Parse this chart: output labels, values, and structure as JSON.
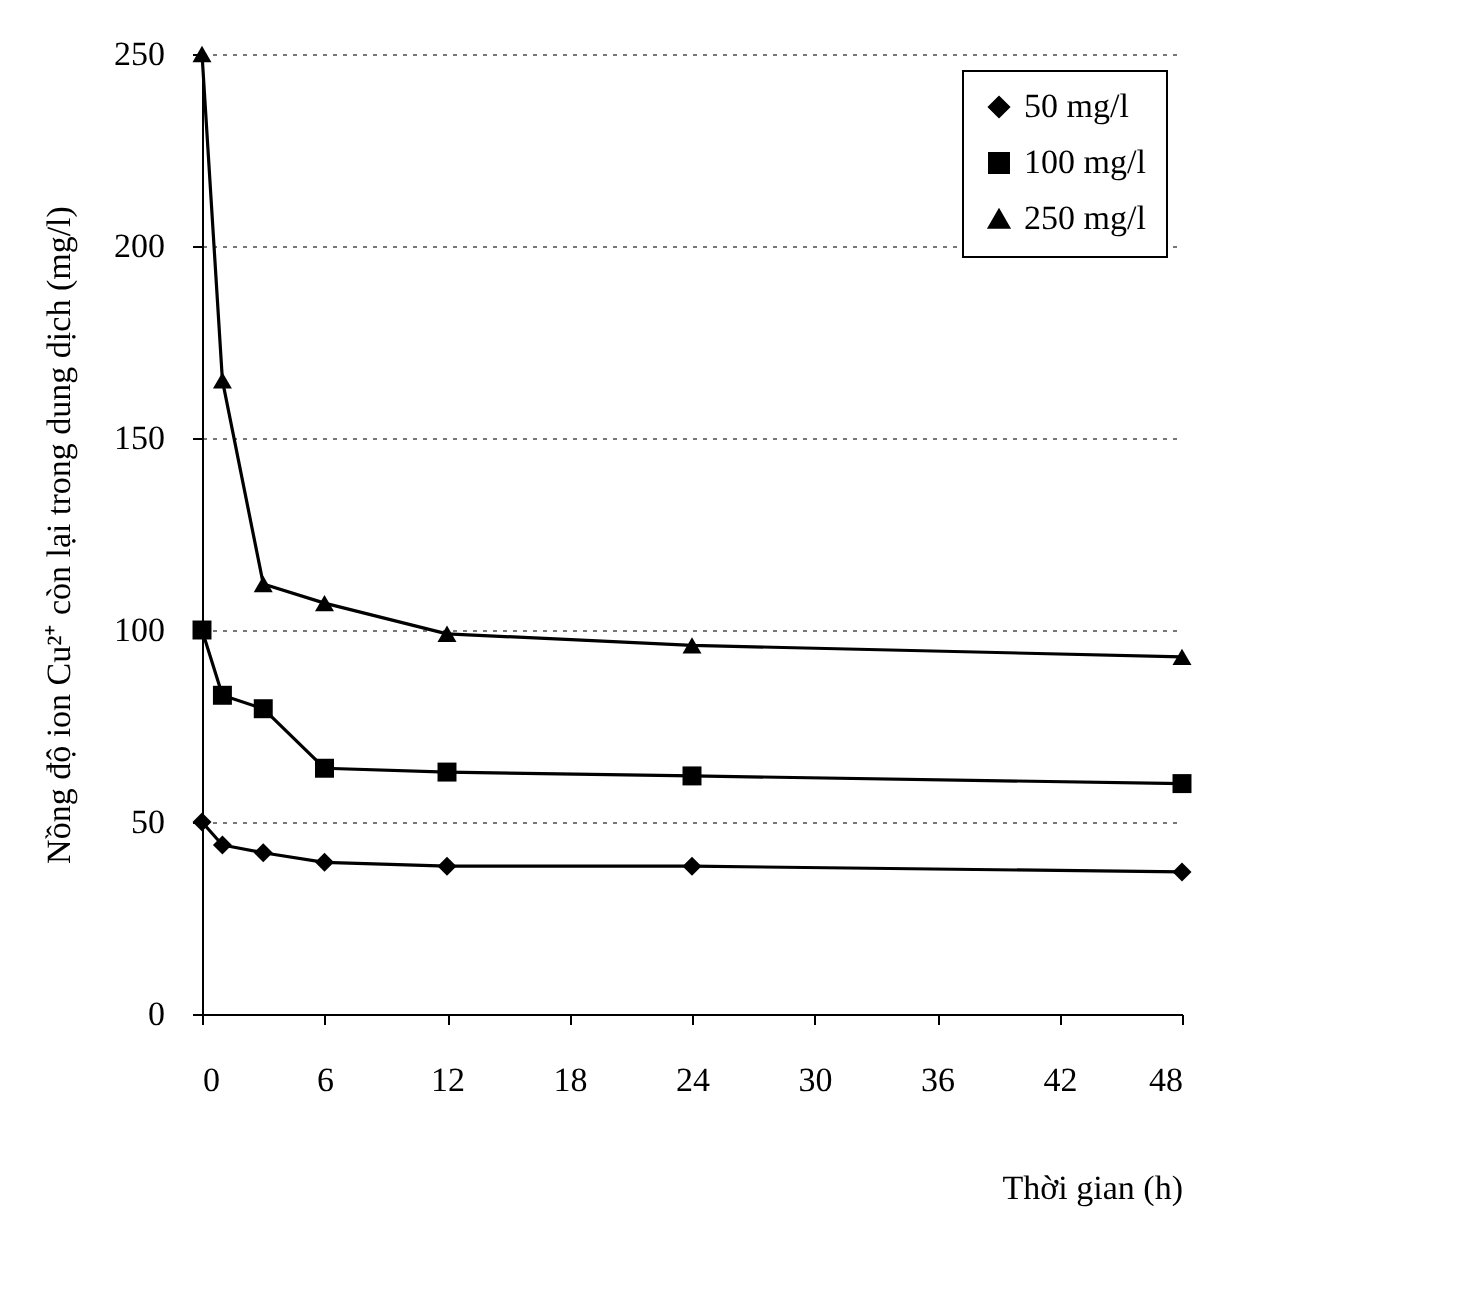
{
  "chart_data": {
    "type": "line",
    "xlabel": "Thời gian (h)",
    "ylabel": "Nồng độ ion Cu²⁺ còn lại trong dung dịch (mg/l)",
    "x": [
      0,
      1,
      3,
      6,
      12,
      24,
      48
    ],
    "series": [
      {
        "name": "50 mg/l",
        "color": "#000000",
        "marker": "diamond",
        "values": [
          50,
          44,
          42,
          39.5,
          38.5,
          38.5,
          37
        ]
      },
      {
        "name": "100 mg/l",
        "color": "#000000",
        "marker": "square",
        "values": [
          100,
          83,
          79.5,
          64,
          63,
          62,
          60
        ]
      },
      {
        "name": "250 mg/l",
        "color": "#000000",
        "marker": "triangle",
        "values": [
          250,
          165,
          112,
          107,
          99,
          96,
          93
        ]
      }
    ],
    "xlim": [
      0,
      48
    ],
    "xticks": [
      0,
      6,
      12,
      18,
      24,
      30,
      36,
      42,
      48
    ],
    "ylim": [
      0,
      250
    ],
    "yticks": [
      0,
      50,
      100,
      150,
      200,
      250
    ],
    "grid": "y",
    "legend": "top right",
    "line_style": "solid"
  }
}
